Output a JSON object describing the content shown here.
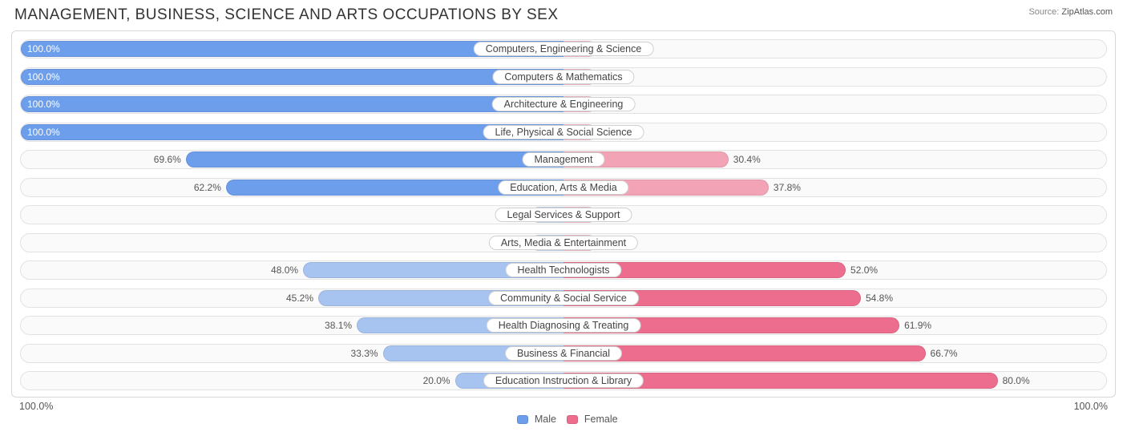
{
  "title": "MANAGEMENT, BUSINESS, SCIENCE AND ARTS OCCUPATIONS BY SEX",
  "source_label": "Source:",
  "source_name": "ZipAtlas.com",
  "axis": {
    "left_label": "100.0%",
    "right_label": "100.0%"
  },
  "legend": {
    "male": {
      "label": "Male",
      "color": "#6d9eeb"
    },
    "female": {
      "label": "Female",
      "color": "#ec6d8d"
    }
  },
  "chart": {
    "type": "diverging-bar",
    "background_color": "#ffffff",
    "row_bg": "#fafafa",
    "border_color": "#e2e2e2",
    "pill_bg": "#ffffff",
    "pill_border": "#d0d0d0",
    "text_color": "#555555",
    "male_fill_strong": "#6d9eeb",
    "male_fill_weak": "#a7c3ef",
    "male_fill_faint": "#c8d8f3",
    "female_fill_strong": "#ec6d8d",
    "female_fill_weak": "#f2a4b6",
    "female_fill_faint": "#f5c0cb",
    "min_bar_pct": 6,
    "rows": [
      {
        "category": "Computers, Engineering & Science",
        "male": 100.0,
        "female": 0.0
      },
      {
        "category": "Computers & Mathematics",
        "male": 100.0,
        "female": 0.0
      },
      {
        "category": "Architecture & Engineering",
        "male": 100.0,
        "female": 0.0
      },
      {
        "category": "Life, Physical & Social Science",
        "male": 100.0,
        "female": 0.0
      },
      {
        "category": "Management",
        "male": 69.6,
        "female": 30.4
      },
      {
        "category": "Education, Arts & Media",
        "male": 62.2,
        "female": 37.8
      },
      {
        "category": "Legal Services & Support",
        "male": 0.0,
        "female": 0.0
      },
      {
        "category": "Arts, Media & Entertainment",
        "male": 0.0,
        "female": 0.0
      },
      {
        "category": "Health Technologists",
        "male": 48.0,
        "female": 52.0
      },
      {
        "category": "Community & Social Service",
        "male": 45.2,
        "female": 54.8
      },
      {
        "category": "Health Diagnosing & Treating",
        "male": 38.1,
        "female": 61.9
      },
      {
        "category": "Business & Financial",
        "male": 33.3,
        "female": 66.7
      },
      {
        "category": "Education Instruction & Library",
        "male": 20.0,
        "female": 80.0
      }
    ]
  }
}
